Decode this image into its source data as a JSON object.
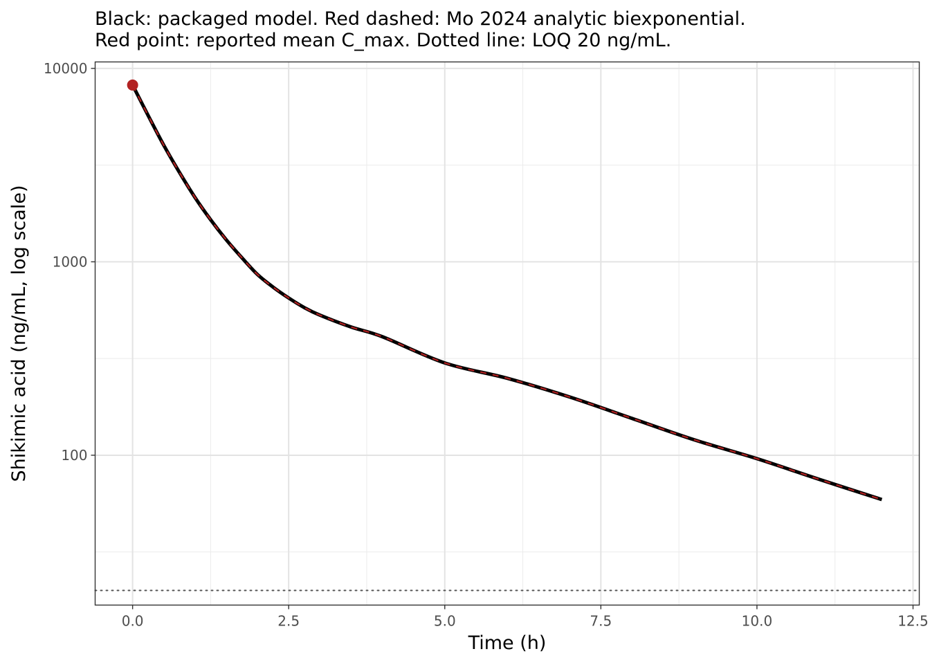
{
  "chart_data": {
    "type": "line",
    "title": "",
    "subtitle": [
      "Black: packaged model. Red dashed: Mo 2024 analytic biexponential.",
      "Red point: reported mean C_max. Dotted line: LOQ 20 ng/mL."
    ],
    "xlabel": "Time (h)",
    "ylabel": "Shikimic acid (ng/mL, log scale)",
    "x_scale": "linear",
    "y_scale": "log10",
    "xlim": [
      -0.6,
      12.6
    ],
    "ylim": [
      16.8,
      10800
    ],
    "x_ticks": [
      0,
      2.5,
      5,
      7.5,
      10,
      12.5
    ],
    "x_tick_labels": [
      "0.0",
      "2.5",
      "5.0",
      "7.5",
      "10.0",
      "12.5"
    ],
    "y_ticks": [
      100,
      1000,
      10000
    ],
    "y_tick_labels": [
      "100",
      "1000",
      "10000"
    ],
    "grid": true,
    "series": [
      {
        "name": "packaged model",
        "style": "solid",
        "color": "#000000",
        "x": [
          0,
          0.25,
          0.5,
          0.75,
          1,
          1.25,
          1.5,
          1.75,
          2,
          2.25,
          2.5,
          2.75,
          3,
          3.5,
          4,
          5,
          6,
          7,
          8,
          9,
          10,
          11,
          12
        ],
        "y": [
          8200,
          5700,
          4000,
          2900,
          2150,
          1650,
          1300,
          1050,
          860,
          740,
          650,
          580,
          530,
          460,
          410,
          300,
          250,
          200,
          155,
          120,
          96,
          75,
          59
        ]
      },
      {
        "name": "Mo 2024 analytic biexponential",
        "style": "dashed",
        "color": "#b22222",
        "x": [
          0,
          0.25,
          0.5,
          0.75,
          1,
          1.25,
          1.5,
          1.75,
          2,
          2.25,
          2.5,
          2.75,
          3,
          3.5,
          4,
          5,
          6,
          7,
          8,
          9,
          10,
          11,
          12
        ],
        "y": [
          8200,
          5700,
          4000,
          2900,
          2150,
          1650,
          1300,
          1050,
          860,
          740,
          650,
          580,
          530,
          460,
          410,
          300,
          250,
          200,
          155,
          120,
          96,
          75,
          59
        ]
      }
    ],
    "points": [
      {
        "name": "reported mean C_max",
        "x": 0,
        "y": 8200,
        "color": "#b22222"
      }
    ],
    "reference_lines": [
      {
        "name": "LOQ",
        "y": 20,
        "style": "dotted",
        "color": "#555555"
      }
    ]
  }
}
